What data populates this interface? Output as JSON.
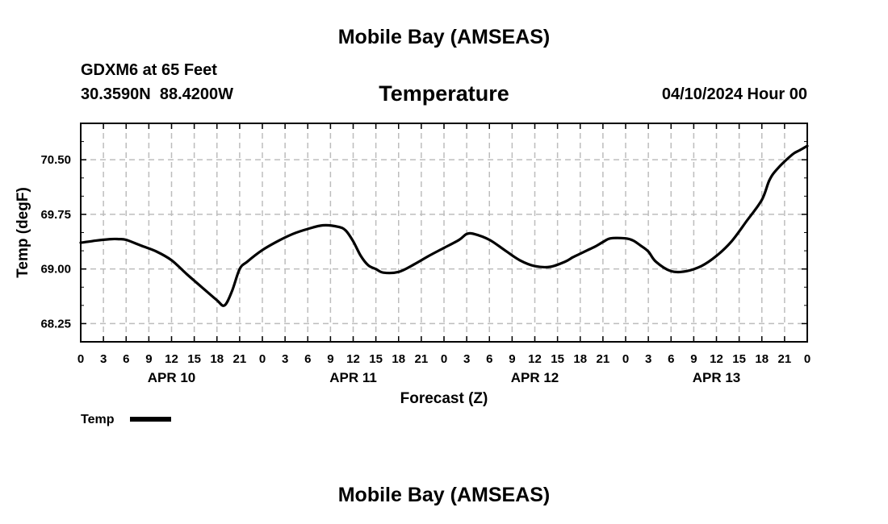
{
  "page": {
    "top_title": "Mobile Bay (AMSEAS)",
    "bottom_title": "Mobile Bay (AMSEAS)",
    "station": "GDXM6 at 65 Feet",
    "coords": "30.3590N  88.4200W",
    "datetime": "04/10/2024 Hour 00"
  },
  "chart_data": {
    "type": "line",
    "title": "Temperature",
    "xlabel": "Forecast (Z)",
    "ylabel": "Temp (degF)",
    "ylim": [
      68.0,
      71.0
    ],
    "xlim": [
      0,
      96
    ],
    "yticks": [
      68.25,
      69.0,
      69.75,
      70.5
    ],
    "ytick_labels": [
      "68.25",
      "69.00",
      "69.75",
      "70.50"
    ],
    "xtick_hours": [
      0,
      3,
      6,
      9,
      12,
      15,
      18,
      21,
      24,
      27,
      30,
      33,
      36,
      39,
      42,
      45,
      48,
      51,
      54,
      57,
      60,
      63,
      66,
      69,
      72,
      75,
      78,
      81,
      84,
      87,
      90,
      93,
      96
    ],
    "xtick_labels": [
      "0",
      "3",
      "6",
      "9",
      "12",
      "15",
      "18",
      "21",
      "0",
      "3",
      "6",
      "9",
      "12",
      "15",
      "18",
      "21",
      "0",
      "3",
      "6",
      "9",
      "12",
      "15",
      "18",
      "21",
      "0",
      "3",
      "6",
      "9",
      "12",
      "15",
      "18",
      "21",
      "0"
    ],
    "day_labels": [
      {
        "hour": 12,
        "label": "APR 10"
      },
      {
        "hour": 36,
        "label": "APR 11"
      },
      {
        "hour": 60,
        "label": "APR 12"
      },
      {
        "hour": 84,
        "label": "APR 13"
      }
    ],
    "grid": true,
    "legend": {
      "position": "bottom-left",
      "entries": [
        "Temp"
      ]
    },
    "series": [
      {
        "name": "Temp",
        "color": "#000000",
        "x": [
          0,
          2,
          4,
          5,
          6,
          8,
          10,
          12,
          14,
          16,
          18,
          19,
          20,
          21,
          22,
          24,
          26,
          28,
          30,
          32,
          34,
          35,
          36,
          37,
          38,
          39,
          40,
          42,
          44,
          46,
          48,
          50,
          51,
          52,
          54,
          56,
          58,
          60,
          62,
          64,
          65,
          66,
          67,
          68,
          69,
          70,
          72,
          73,
          74,
          75,
          76,
          78,
          80,
          82,
          84,
          86,
          88,
          90,
          91,
          92,
          94,
          95,
          96
        ],
        "y": [
          69.36,
          69.39,
          69.41,
          69.41,
          69.4,
          69.32,
          69.24,
          69.12,
          68.93,
          68.75,
          68.57,
          68.5,
          68.7,
          69.0,
          69.1,
          69.26,
          69.38,
          69.48,
          69.55,
          69.6,
          69.58,
          69.53,
          69.38,
          69.18,
          69.05,
          69.0,
          68.95,
          68.96,
          69.06,
          69.18,
          69.29,
          69.4,
          69.48,
          69.48,
          69.4,
          69.26,
          69.12,
          69.04,
          69.03,
          69.1,
          69.16,
          69.21,
          69.26,
          69.31,
          69.37,
          69.42,
          69.42,
          69.39,
          69.32,
          69.24,
          69.1,
          68.97,
          68.97,
          69.04,
          69.18,
          69.38,
          69.66,
          69.95,
          70.22,
          70.37,
          70.57,
          70.63,
          70.69
        ]
      }
    ]
  }
}
